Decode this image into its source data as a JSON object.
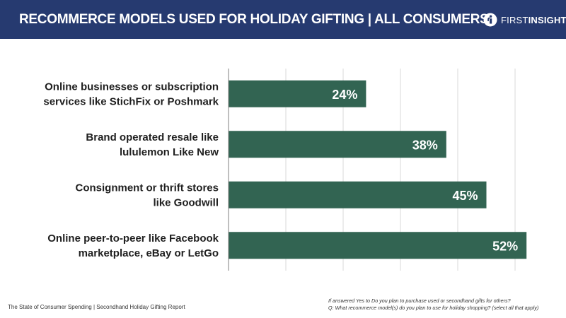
{
  "header": {
    "title": "RECOMMERCE MODELS USED FOR HOLIDAY GIFTING | ALL CONSUMERS",
    "background_color": "#263a70",
    "logo": {
      "icon": "first-insight-logo-icon",
      "text_first": "FIRST",
      "text_insight": "INSIGHT"
    }
  },
  "chart_data": {
    "type": "bar",
    "orientation": "horizontal",
    "categories": [
      "Online businesses or subscription services like StichFix or Poshmark",
      "Brand operated resale like lululemon Like New",
      "Consignment or thrift stores like Goodwill",
      "Online peer-to-peer like Facebook marketplace, eBay or LetGo"
    ],
    "category_lines": [
      [
        "Online businesses or subscription",
        "services like StichFix or Poshmark"
      ],
      [
        "Brand operated resale like",
        "lululemon Like New"
      ],
      [
        "Consignment or thrift stores",
        "like Goodwill"
      ],
      [
        "Online peer-to-peer like Facebook",
        "marketplace, eBay or LetGo"
      ]
    ],
    "values": [
      24,
      38,
      45,
      52
    ],
    "value_labels": [
      "24%",
      "38%",
      "45%",
      "52%"
    ],
    "xlim": [
      0,
      60
    ],
    "grid_step": 10,
    "grid": true,
    "bar_color": "#326452",
    "legend": "none"
  },
  "footer": {
    "source": "The State of Consumer Spending | Secondhand Holiday Gifting Report",
    "note_line1": "If answered Yes to Do you plan to purchase used or secondhand gifts for others?",
    "note_line2": "Q: What recommerce model(s) do you plan to use for holiday shopping? (select all that apply)"
  }
}
